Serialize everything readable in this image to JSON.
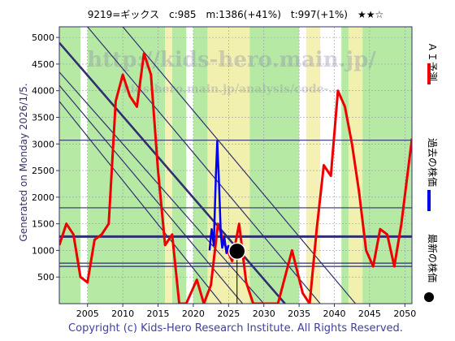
{
  "header": {
    "title": "9219=ギックス　c:985　m:1386(+41%)　t:997(+1%)　★★☆"
  },
  "watermark": {
    "lines": [
      "http://kids-hero.main.jp/",
      "kids-hero.main.jp/analysis/code-..."
    ]
  },
  "side_label": "Generated on Monday 2026/1/5.",
  "legend": [
    {
      "label": "ＡＩ予測",
      "color": "#ee0000",
      "marker": "line"
    },
    {
      "label": "過去の株価",
      "color": "#0000ee",
      "marker": "line"
    },
    {
      "label": "最新の株価",
      "color": "#000000",
      "marker": "dot"
    }
  ],
  "footer": "Copyright (c) Kids-Hero Research Institute. All Rights Reserved.",
  "colors": {
    "prediction": "#ee0000",
    "history": "#0000ee",
    "trend": "#303070",
    "band_green": "#aee89a",
    "band_yellow": "#f4f0b0",
    "footer_text": "#4040a0"
  },
  "chart_data": {
    "type": "line",
    "title": "",
    "xlabel": "",
    "ylabel": "",
    "xlim": [
      2001,
      2051
    ],
    "ylim": [
      0,
      5200
    ],
    "x_ticks": [
      2005,
      2010,
      2015,
      2020,
      2025,
      2030,
      2035,
      2040,
      2045,
      2050
    ],
    "y_ticks": [
      500,
      1000,
      1500,
      2000,
      2500,
      3000,
      3500,
      4000,
      4500,
      5000
    ],
    "grid": true,
    "series": [
      {
        "role": "prediction",
        "points": [
          [
            2001,
            1100
          ],
          [
            2002,
            1500
          ],
          [
            2003,
            1300
          ],
          [
            2004,
            500
          ],
          [
            2005,
            400
          ],
          [
            2006,
            1200
          ],
          [
            2007,
            1300
          ],
          [
            2008,
            1500
          ],
          [
            2009,
            3800
          ],
          [
            2010,
            4300
          ],
          [
            2011,
            3900
          ],
          [
            2012,
            3700
          ],
          [
            2013,
            4700
          ],
          [
            2014,
            4300
          ],
          [
            2015,
            2500
          ],
          [
            2016,
            1100
          ],
          [
            2017,
            1300
          ],
          [
            2018,
            0
          ],
          [
            2019,
            0
          ],
          [
            2020,
            300
          ],
          [
            2020.5,
            450
          ],
          [
            2021.5,
            0
          ],
          [
            2022.5,
            350
          ],
          [
            2023.5,
            1500
          ],
          [
            2024.5,
            1100
          ],
          [
            2025.5,
            800
          ],
          [
            2026.5,
            1500
          ],
          [
            2027.5,
            400
          ],
          [
            2028.5,
            0
          ],
          [
            2030,
            0
          ],
          [
            2032,
            0
          ],
          [
            2034,
            1000
          ],
          [
            2035.5,
            200
          ],
          [
            2036.5,
            0
          ],
          [
            2037.5,
            1400
          ],
          [
            2038.5,
            2600
          ],
          [
            2039.5,
            2400
          ],
          [
            2040.5,
            4000
          ],
          [
            2041.5,
            3700
          ],
          [
            2042.5,
            3000
          ],
          [
            2043.5,
            2100
          ],
          [
            2044.5,
            1000
          ],
          [
            2045.5,
            700
          ],
          [
            2046.5,
            1400
          ],
          [
            2047.5,
            1300
          ],
          [
            2048.5,
            700
          ],
          [
            2049.5,
            1500
          ],
          [
            2051,
            3100
          ]
        ]
      },
      {
        "role": "history",
        "points": [
          [
            2022.3,
            1000
          ],
          [
            2022.6,
            1400
          ],
          [
            2022.9,
            1100
          ],
          [
            2023.2,
            2400
          ],
          [
            2023.4,
            3050
          ],
          [
            2023.6,
            2400
          ],
          [
            2023.9,
            1300
          ],
          [
            2024.1,
            1050
          ],
          [
            2024.4,
            1250
          ],
          [
            2024.7,
            950
          ],
          [
            2025.0,
            1100
          ]
        ]
      }
    ],
    "latest": {
      "x": 2026.2,
      "y": 985
    },
    "horizontal_lines": [
      3070,
      1800,
      1260,
      760,
      700
    ],
    "trend_lines": [
      [
        [
          2001,
          4900
        ],
        [
          2033,
          0
        ]
      ],
      [
        [
          2001,
          4350
        ],
        [
          2030,
          0
        ]
      ],
      [
        [
          2001,
          4100
        ],
        [
          2027,
          0
        ]
      ],
      [
        [
          2001,
          3800
        ],
        [
          2024,
          0
        ]
      ],
      [
        [
          2005,
          5200
        ],
        [
          2038,
          0
        ]
      ],
      [
        [
          2010,
          5200
        ],
        [
          2043,
          0
        ]
      ]
    ],
    "bands_yellow": [
      [
        2016,
        2017
      ],
      [
        2022,
        2028
      ],
      [
        2036,
        2038
      ],
      [
        2042,
        2044
      ]
    ],
    "bands_green": [
      [
        2001,
        2004
      ],
      [
        2005,
        2016
      ],
      [
        2017,
        2019
      ],
      [
        2020,
        2035
      ],
      [
        2041,
        2051
      ]
    ]
  }
}
